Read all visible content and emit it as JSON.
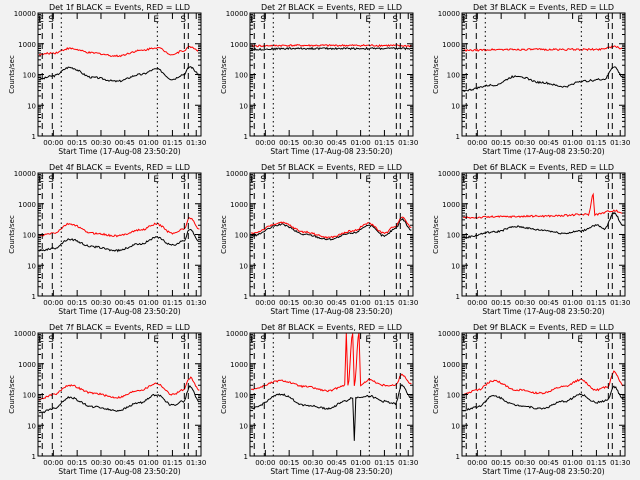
{
  "window": {
    "background": "#f2f2f2"
  },
  "colors": {
    "events": "#000000",
    "lld": "#ff0000",
    "frame": "#000000"
  },
  "chart_data": {
    "type": "line",
    "grid": false,
    "layout": "3x3 panels",
    "ylabel": "Counts/sec",
    "xlabel": "Start Time (17-Aug-08 23:50:20)",
    "y_scale": "log",
    "ylim": [
      1,
      10000
    ],
    "y_ticks": [
      "1",
      "10",
      "100",
      "1000",
      "10000"
    ],
    "xlim": [
      "23:50:20",
      "01:33:00"
    ],
    "x_ticks": [
      "00:00",
      "00:15",
      "00:30",
      "00:45",
      "01:00",
      "01:15",
      "01:30"
    ],
    "markers": [
      {
        "label": "E",
        "time": "23:53:00",
        "style": "dashed"
      },
      {
        "label": "S",
        "time": "23:59:20",
        "style": "dashed"
      },
      {
        "label": "",
        "time": "00:05:00",
        "style": "dotted"
      },
      {
        "label": "E",
        "time": "01:05:30",
        "style": "dotted"
      },
      {
        "label": "S",
        "time": "01:22:30",
        "style": "dashed"
      },
      {
        "label": "",
        "time": "01:25:00",
        "style": "dashed"
      }
    ],
    "series_names": [
      "Events",
      "LLD"
    ],
    "panels": [
      {
        "title": "Det 1f BLACK = Events, RED = LLD",
        "series": [
          {
            "name": "Events",
            "color": "black",
            "x": [
              "23:51",
              "00:00",
              "00:10",
              "00:25",
              "00:40",
              "00:55",
              "01:05",
              "01:15",
              "01:22",
              "01:26",
              "01:32"
            ],
            "y": [
              70,
              90,
              170,
              80,
              60,
              100,
              150,
              70,
              100,
              180,
              100
            ]
          },
          {
            "name": "LLD",
            "color": "red",
            "x": [
              "23:51",
              "00:00",
              "00:10",
              "00:25",
              "00:40",
              "00:55",
              "01:05",
              "01:15",
              "01:22",
              "01:26",
              "01:32"
            ],
            "y": [
              450,
              500,
              700,
              500,
              400,
              600,
              750,
              450,
              600,
              800,
              600
            ]
          }
        ]
      },
      {
        "title": "Det 2f BLACK = Events, RED = LLD",
        "series": [
          {
            "name": "Events",
            "color": "black",
            "x": [
              "23:51",
              "00:15",
              "00:45",
              "01:15",
              "01:32"
            ],
            "y": [
              650,
              700,
              700,
              700,
              700
            ]
          },
          {
            "name": "LLD",
            "color": "red",
            "x": [
              "23:51",
              "00:15",
              "00:45",
              "01:15",
              "01:32"
            ],
            "y": [
              850,
              880,
              880,
              880,
              850
            ]
          }
        ]
      },
      {
        "title": "Det 3f BLACK = Events, RED = LLD",
        "series": [
          {
            "name": "Events",
            "color": "black",
            "x": [
              "23:51",
              "00:10",
              "00:25",
              "00:40",
              "00:55",
              "01:05",
              "01:20",
              "01:26",
              "01:32"
            ],
            "y": [
              30,
              45,
              90,
              55,
              40,
              60,
              70,
              180,
              80
            ]
          },
          {
            "name": "LLD",
            "color": "red",
            "x": [
              "23:51",
              "00:15",
              "00:45",
              "01:15",
              "01:26",
              "01:32"
            ],
            "y": [
              600,
              650,
              650,
              650,
              800,
              700
            ]
          }
        ]
      },
      {
        "title": "Det 4f BLACK = Events, RED = LLD",
        "series": [
          {
            "name": "Events",
            "color": "black",
            "x": [
              "23:51",
              "00:00",
              "00:10",
              "00:25",
              "00:40",
              "00:55",
              "01:05",
              "01:15",
              "01:22",
              "01:26",
              "01:32"
            ],
            "y": [
              30,
              35,
              70,
              40,
              30,
              50,
              80,
              45,
              60,
              150,
              60
            ]
          },
          {
            "name": "LLD",
            "color": "red",
            "x": [
              "23:51",
              "00:00",
              "00:10",
              "00:25",
              "00:40",
              "00:55",
              "01:05",
              "01:15",
              "01:22",
              "01:26",
              "01:32"
            ],
            "y": [
              90,
              110,
              220,
              110,
              90,
              140,
              220,
              110,
              150,
              350,
              150
            ]
          }
        ]
      },
      {
        "title": "Det 5f BLACK = Events, RED = LLD",
        "series": [
          {
            "name": "Events",
            "color": "black",
            "x": [
              "23:51",
              "00:10",
              "00:25",
              "00:40",
              "00:55",
              "01:05",
              "01:15",
              "01:22",
              "01:26",
              "01:32"
            ],
            "y": [
              90,
              210,
              100,
              70,
              110,
              200,
              90,
              160,
              320,
              140
            ]
          },
          {
            "name": "LLD",
            "color": "red",
            "x": [
              "23:51",
              "00:10",
              "00:25",
              "00:40",
              "00:55",
              "01:05",
              "01:15",
              "01:22",
              "01:26",
              "01:32"
            ],
            "y": [
              110,
              240,
              120,
              80,
              130,
              230,
              110,
              190,
              380,
              170
            ]
          }
        ]
      },
      {
        "title": "Det 6f BLACK = Events, RED = LLD",
        "series": [
          {
            "name": "Events",
            "color": "black",
            "x": [
              "23:51",
              "00:10",
              "00:25",
              "00:40",
              "00:55",
              "01:05",
              "01:15",
              "01:20",
              "01:26",
              "01:32"
            ],
            "y": [
              80,
              120,
              180,
              140,
              110,
              130,
              200,
              150,
              500,
              200
            ]
          },
          {
            "name": "LLD",
            "color": "red",
            "x": [
              "23:51",
              "00:15",
              "00:45",
              "01:10",
              "01:13",
              "01:14",
              "01:26",
              "01:32"
            ],
            "y": [
              350,
              380,
              400,
              450,
              2000,
              450,
              600,
              500
            ]
          }
        ]
      },
      {
        "title": "Det 7f BLACK = Events, RED = LLD",
        "series": [
          {
            "name": "Events",
            "color": "black",
            "x": [
              "23:51",
              "00:00",
              "00:10",
              "00:25",
              "00:40",
              "00:55",
              "01:05",
              "01:15",
              "01:22",
              "01:26",
              "01:32"
            ],
            "y": [
              25,
              35,
              80,
              40,
              30,
              55,
              100,
              45,
              60,
              180,
              60
            ]
          },
          {
            "name": "LLD",
            "color": "red",
            "x": [
              "23:51",
              "00:00",
              "00:10",
              "00:25",
              "00:40",
              "00:55",
              "01:05",
              "01:15",
              "01:22",
              "01:26",
              "01:32"
            ],
            "y": [
              70,
              100,
              200,
              110,
              80,
              140,
              230,
              100,
              140,
              350,
              140
            ]
          }
        ]
      },
      {
        "title": "Det 8f BLACK = Events, RED = LLD",
        "series": [
          {
            "name": "Events",
            "color": "black",
            "x": [
              "23:51",
              "00:10",
              "00:25",
              "00:40",
              "00:50",
              "00:55",
              "00:56",
              "00:57",
              "01:05",
              "01:15",
              "01:22",
              "01:26",
              "01:32"
            ],
            "y": [
              35,
              100,
              45,
              35,
              60,
              80,
              3,
              80,
              90,
              60,
              50,
              200,
              80
            ]
          },
          {
            "name": "LLD",
            "color": "red",
            "x": [
              "23:51",
              "00:10",
              "00:25",
              "00:40",
              "00:50",
              "00:51",
              "00:52",
              "00:55",
              "00:56",
              "00:59",
              "01:00",
              "01:05",
              "01:15",
              "01:22",
              "01:26",
              "01:32"
            ],
            "y": [
              150,
              280,
              180,
              130,
              200,
              10000,
              200,
              10000,
              200,
              10000,
              200,
              300,
              200,
              200,
              450,
              220
            ]
          }
        ]
      },
      {
        "title": "Det 9f BLACK = Events, RED = LLD",
        "series": [
          {
            "name": "Events",
            "color": "black",
            "x": [
              "23:51",
              "00:00",
              "00:10",
              "00:25",
              "00:40",
              "00:55",
              "01:05",
              "01:15",
              "01:22",
              "01:26",
              "01:32"
            ],
            "y": [
              30,
              40,
              90,
              45,
              35,
              60,
              100,
              55,
              65,
              180,
              70
            ]
          },
          {
            "name": "LLD",
            "color": "red",
            "x": [
              "23:51",
              "00:00",
              "00:10",
              "00:25",
              "00:40",
              "00:55",
              "01:05",
              "01:15",
              "01:22",
              "01:26",
              "01:32"
            ],
            "y": [
              100,
              140,
              280,
              140,
              110,
              180,
              300,
              140,
              180,
              550,
              200
            ]
          }
        ]
      }
    ]
  }
}
